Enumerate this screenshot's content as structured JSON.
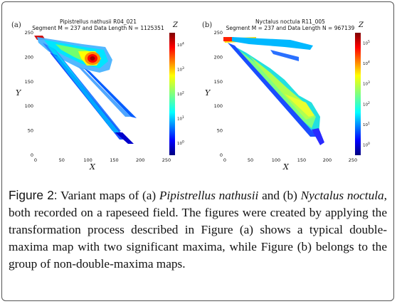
{
  "figure": {
    "panels": [
      {
        "letter": "(a)",
        "title": "Pipistrellus nathusii R04_021",
        "subtitle": "Segment M = 237 and Data Length N = 1125351",
        "xlabel": "X",
        "ylabel": "Y",
        "zlabel": "Z",
        "x_ticks": [
          "0",
          "50",
          "100",
          "150",
          "200",
          "250"
        ],
        "y_ticks": [
          "0",
          "50",
          "100",
          "150",
          "200",
          "250"
        ],
        "cb_ticks": [
          "10^0",
          "10^1",
          "10^2",
          "10^3",
          "10^4"
        ]
      },
      {
        "letter": "(b)",
        "title": "Nyctalus noctula R11_005",
        "subtitle": "Segment M = 237 and Data Length N = 967139",
        "xlabel": "X",
        "ylabel": "Y",
        "zlabel": "Z",
        "x_ticks": [
          "0",
          "50",
          "100",
          "150",
          "200",
          "250"
        ],
        "y_ticks": [
          "0",
          "50",
          "100",
          "150",
          "200",
          "250"
        ],
        "cb_ticks": [
          "10^0",
          "10^1",
          "10^2",
          "10^3",
          "10^4",
          "10^5"
        ]
      }
    ]
  },
  "caption": {
    "label": "Figure 2:",
    "t1": " Variant maps of (a) ",
    "s1": "Pipistrellus nathusii",
    "t2": " and (b) ",
    "s2": "Nyctalus noctula",
    "t3": ", both recorded on a rapeseed field. The figures were created by applying the transformation process described in Figure (a) shows a typical double-maxima map with two significant maxima, while Figure (b) belongs to the group of non-double-maxima maps."
  }
}
